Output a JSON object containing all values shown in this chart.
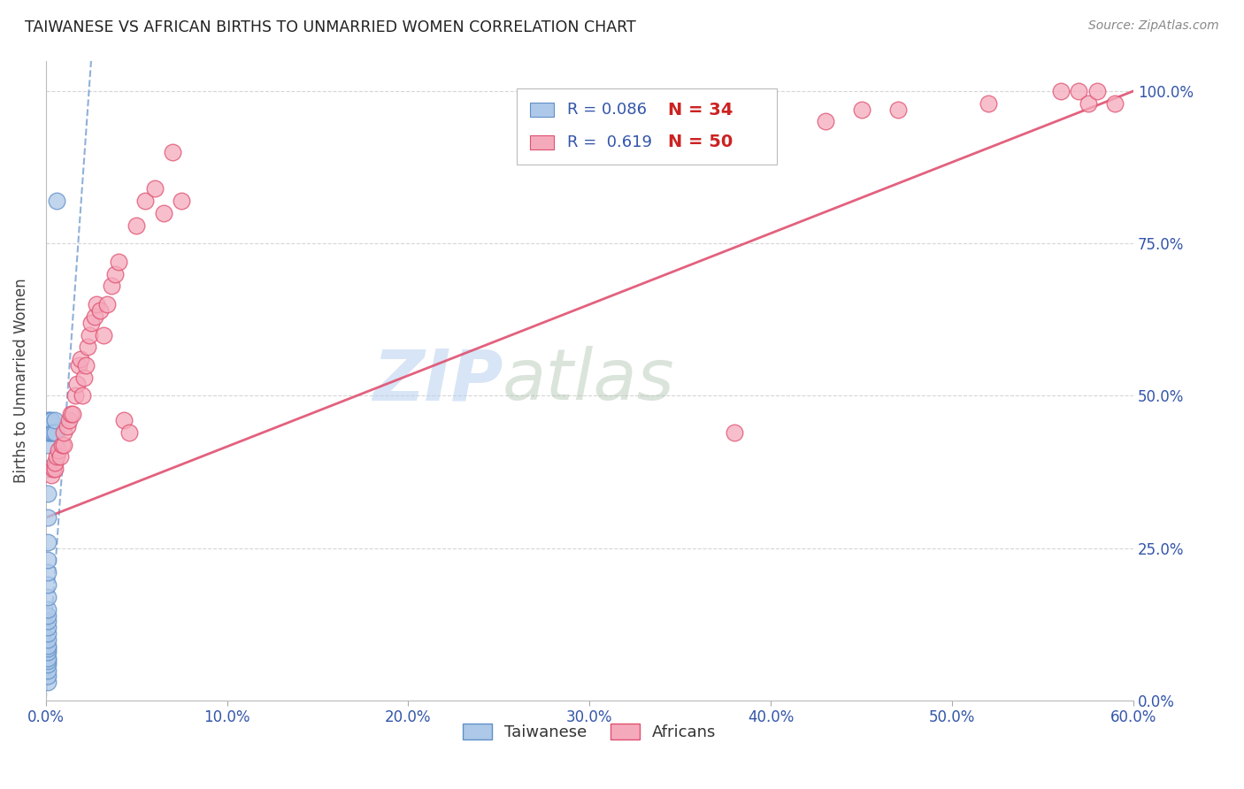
{
  "title": "TAIWANESE VS AFRICAN BIRTHS TO UNMARRIED WOMEN CORRELATION CHART",
  "source": "Source: ZipAtlas.com",
  "ylabel": "Births to Unmarried Women",
  "xticklabels": [
    "0.0%",
    "",
    "",
    "",
    "",
    "",
    "",
    "",
    "",
    "",
    "10.0%",
    "",
    "",
    "",
    "",
    "",
    "",
    "",
    "",
    "",
    "20.0%",
    "",
    "",
    "",
    "",
    "",
    "",
    "",
    "",
    "",
    "30.0%",
    "",
    "",
    "",
    "",
    "",
    "",
    "",
    "",
    "",
    "40.0%",
    "",
    "",
    "",
    "",
    "",
    "",
    "",
    "",
    "",
    "50.0%",
    "",
    "",
    "",
    "",
    "",
    "",
    "",
    "",
    "",
    "60.0%"
  ],
  "yticklabels_right": [
    "0.0%",
    "25.0%",
    "50.0%",
    "75.0%",
    "100.0%"
  ],
  "xlim": [
    0.0,
    0.6
  ],
  "ylim": [
    0.0,
    1.05
  ],
  "watermark_zip": "ZIP",
  "watermark_atlas": "atlas",
  "legend_r1": "R = 0.086",
  "legend_n1": "N = 34",
  "legend_r2": "R =  0.619",
  "legend_n2": "N = 50",
  "taiwanese_color": "#adc8e8",
  "african_color": "#f5aabc",
  "trendline_taiwanese_color": "#6090c8",
  "trendline_african_color": "#e05070",
  "grid_color": "#cccccc",
  "title_color": "#222222",
  "axis_label_color": "#444444",
  "tick_color": "#3355aa",
  "right_tick_color": "#3355aa",
  "taiwanese_x": [
    0.001,
    0.001,
    0.001,
    0.001,
    0.001,
    0.001,
    0.001,
    0.001,
    0.001,
    0.001,
    0.001,
    0.001,
    0.001,
    0.001,
    0.001,
    0.001,
    0.001,
    0.001,
    0.001,
    0.001,
    0.001,
    0.001,
    0.001,
    0.001,
    0.001,
    0.001,
    0.002,
    0.002,
    0.003,
    0.003,
    0.004,
    0.005,
    0.005,
    0.006
  ],
  "taiwanese_y": [
    0.03,
    0.04,
    0.05,
    0.06,
    0.065,
    0.07,
    0.08,
    0.085,
    0.09,
    0.1,
    0.11,
    0.12,
    0.13,
    0.14,
    0.15,
    0.17,
    0.19,
    0.21,
    0.23,
    0.26,
    0.3,
    0.34,
    0.38,
    0.42,
    0.44,
    0.46,
    0.44,
    0.46,
    0.44,
    0.46,
    0.44,
    0.44,
    0.46,
    0.82
  ],
  "african_x": [
    0.003,
    0.004,
    0.005,
    0.005,
    0.006,
    0.007,
    0.008,
    0.009,
    0.01,
    0.01,
    0.012,
    0.013,
    0.014,
    0.015,
    0.016,
    0.017,
    0.018,
    0.019,
    0.02,
    0.021,
    0.022,
    0.023,
    0.024,
    0.025,
    0.027,
    0.028,
    0.03,
    0.032,
    0.034,
    0.036,
    0.038,
    0.04,
    0.043,
    0.046,
    0.05,
    0.055,
    0.06,
    0.065,
    0.07,
    0.075,
    0.38,
    0.43,
    0.45,
    0.47,
    0.52,
    0.56,
    0.57,
    0.575,
    0.58,
    0.59
  ],
  "african_y": [
    0.37,
    0.38,
    0.38,
    0.39,
    0.4,
    0.41,
    0.4,
    0.42,
    0.42,
    0.44,
    0.45,
    0.46,
    0.47,
    0.47,
    0.5,
    0.52,
    0.55,
    0.56,
    0.5,
    0.53,
    0.55,
    0.58,
    0.6,
    0.62,
    0.63,
    0.65,
    0.64,
    0.6,
    0.65,
    0.68,
    0.7,
    0.72,
    0.46,
    0.44,
    0.78,
    0.82,
    0.84,
    0.8,
    0.9,
    0.82,
    0.44,
    0.95,
    0.97,
    0.97,
    0.98,
    1.0,
    1.0,
    0.98,
    1.0,
    0.98
  ],
  "tw_trendline_x": [
    0.0,
    0.025
  ],
  "tw_trendline_y": [
    0.0,
    1.05
  ],
  "af_trendline_x": [
    0.0,
    0.6
  ],
  "af_trendline_y": [
    0.3,
    1.0
  ]
}
